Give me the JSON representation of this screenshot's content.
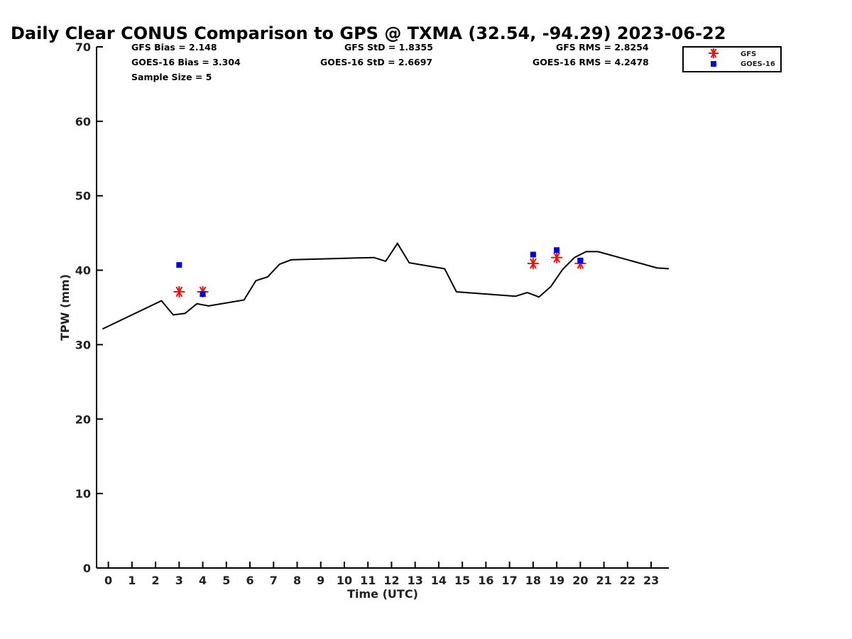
{
  "chart_data": {
    "type": "line",
    "title": "Daily Clear CONUS Comparison to GPS @ TXMA (32.54, -94.29) 2023-06-22",
    "xlabel": "Time (UTC)",
    "ylabel": "TPW (mm)",
    "xlim": [
      -0.5,
      23.75
    ],
    "ylim": [
      0,
      70
    ],
    "x_ticks": [
      "0",
      "1",
      "2",
      "3",
      "4",
      "5",
      "6",
      "7",
      "8",
      "9",
      "10",
      "11",
      "12",
      "13",
      "14",
      "15",
      "16",
      "17",
      "18",
      "19",
      "20",
      "21",
      "22",
      "23"
    ],
    "y_ticks": [
      "0",
      "10",
      "20",
      "30",
      "40",
      "50",
      "60",
      "70"
    ],
    "grid": false,
    "legend_position": "top-right",
    "stats": {
      "gfs_bias": "GFS Bias = 2.148",
      "goes_bias": "GOES-16 Bias = 3.304",
      "sample_size": "Sample Size = 5",
      "gfs_std": "GFS StD = 1.8355",
      "goes_std": "GOES-16 StD = 2.6697",
      "gfs_rms": "GFS RMS = 2.8254",
      "goes_rms": "GOES-16 RMS = 4.2478"
    },
    "gps_line": {
      "color": "#000000",
      "x": [
        -0.25,
        2.25,
        2.75,
        3.25,
        3.75,
        4.25,
        5.75,
        6.25,
        6.75,
        7.25,
        7.75,
        11.25,
        11.75,
        12.25,
        12.75,
        14.25,
        14.75,
        17.25,
        17.75,
        18.25,
        18.75,
        19.25,
        19.75,
        20.25,
        20.75,
        23.25,
        23.75
      ],
      "y": [
        32.1,
        35.9,
        34.0,
        34.2,
        35.5,
        35.2,
        36.0,
        38.6,
        39.1,
        40.8,
        41.4,
        41.7,
        41.2,
        43.6,
        41.0,
        40.2,
        37.1,
        36.5,
        37.0,
        36.4,
        37.8,
        40.1,
        41.7,
        42.5,
        42.5,
        40.3,
        40.2
      ]
    },
    "series": [
      {
        "name": "GFS",
        "color": "#ee1111",
        "marker": "asterisk",
        "x": [
          3,
          4,
          18,
          19,
          20
        ],
        "y": [
          37.1,
          37.1,
          40.9,
          41.7,
          40.9
        ]
      },
      {
        "name": "GOES-16",
        "color": "#0000dd",
        "marker": "square",
        "x": [
          3,
          4,
          18,
          19,
          20
        ],
        "y": [
          40.7,
          36.8,
          42.1,
          42.7,
          41.3
        ]
      }
    ]
  }
}
